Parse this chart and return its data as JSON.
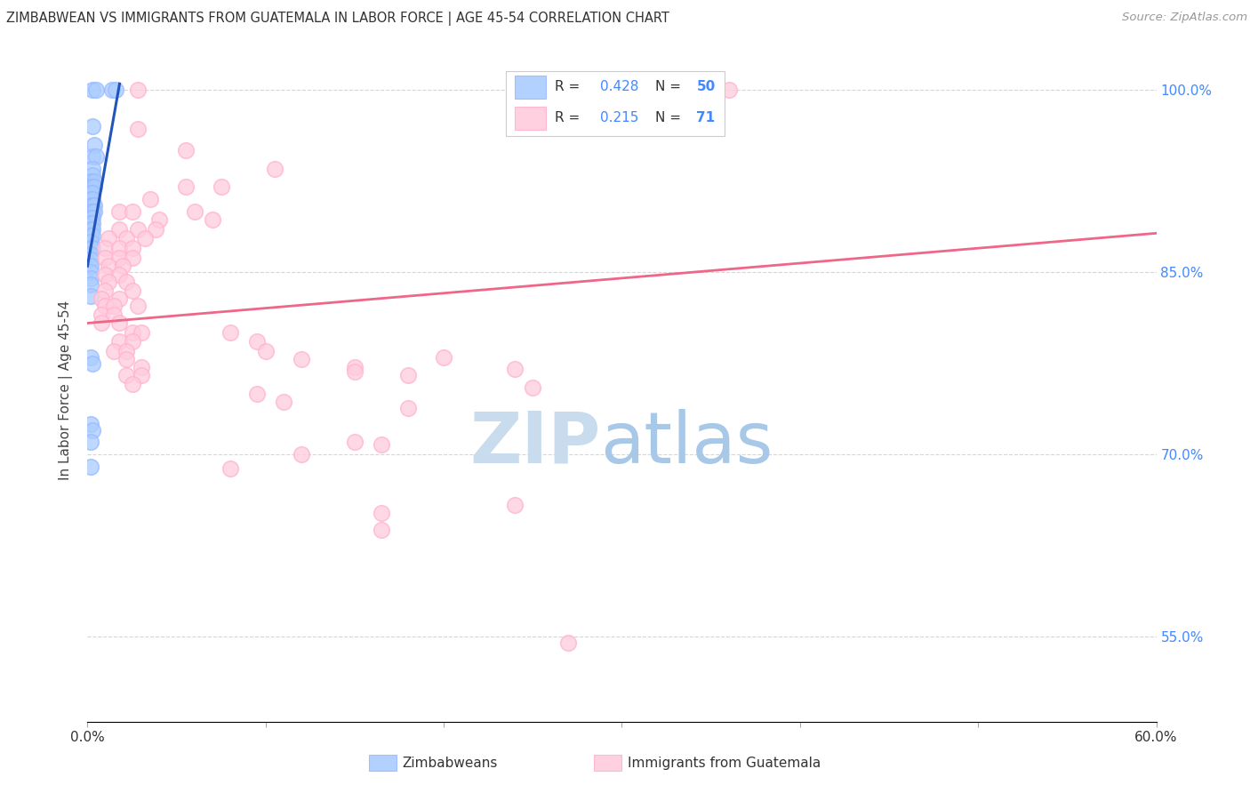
{
  "title": "ZIMBABWEAN VS IMMIGRANTS FROM GUATEMALA IN LABOR FORCE | AGE 45-54 CORRELATION CHART",
  "source": "Source: ZipAtlas.com",
  "ylabel": "In Labor Force | Age 45-54",
  "ytick_labels": [
    "100.0%",
    "85.0%",
    "70.0%",
    "55.0%"
  ],
  "ytick_values": [
    1.0,
    0.85,
    0.7,
    0.55
  ],
  "legend_label1": "Zimbabweans",
  "legend_label2": "Immigrants from Guatemala",
  "R1": 0.428,
  "N1": 50,
  "R2": 0.215,
  "N2": 71,
  "blue_color": "#99BBFF",
  "pink_color": "#FFB3CC",
  "blue_fill": "#AACCFF",
  "pink_fill": "#FFCCDD",
  "blue_line_color": "#2255BB",
  "pink_line_color": "#EE6688",
  "title_color": "#333333",
  "source_color": "#999999",
  "axis_label_color": "#444444",
  "ytick_color": "#4488FF",
  "watermark_zip_color": "#C8DCEE",
  "watermark_atlas_color": "#A8C8E8",
  "blue_scatter": [
    [
      0.003,
      1.0
    ],
    [
      0.005,
      1.0
    ],
    [
      0.014,
      1.0
    ],
    [
      0.016,
      1.0
    ],
    [
      0.003,
      0.97
    ],
    [
      0.004,
      0.955
    ],
    [
      0.003,
      0.945
    ],
    [
      0.005,
      0.945
    ],
    [
      0.003,
      0.935
    ],
    [
      0.003,
      0.93
    ],
    [
      0.002,
      0.925
    ],
    [
      0.004,
      0.925
    ],
    [
      0.002,
      0.92
    ],
    [
      0.003,
      0.92
    ],
    [
      0.004,
      0.92
    ],
    [
      0.002,
      0.915
    ],
    [
      0.003,
      0.915
    ],
    [
      0.002,
      0.91
    ],
    [
      0.003,
      0.91
    ],
    [
      0.002,
      0.905
    ],
    [
      0.003,
      0.905
    ],
    [
      0.004,
      0.905
    ],
    [
      0.002,
      0.9
    ],
    [
      0.003,
      0.9
    ],
    [
      0.004,
      0.9
    ],
    [
      0.002,
      0.895
    ],
    [
      0.003,
      0.895
    ],
    [
      0.002,
      0.89
    ],
    [
      0.003,
      0.89
    ],
    [
      0.002,
      0.885
    ],
    [
      0.003,
      0.885
    ],
    [
      0.002,
      0.88
    ],
    [
      0.003,
      0.88
    ],
    [
      0.002,
      0.875
    ],
    [
      0.002,
      0.87
    ],
    [
      0.003,
      0.87
    ],
    [
      0.002,
      0.865
    ],
    [
      0.002,
      0.86
    ],
    [
      0.002,
      0.855
    ],
    [
      0.002,
      0.85
    ],
    [
      0.002,
      0.845
    ],
    [
      0.002,
      0.84
    ],
    [
      0.002,
      0.83
    ],
    [
      0.002,
      0.78
    ],
    [
      0.003,
      0.775
    ],
    [
      0.002,
      0.725
    ],
    [
      0.003,
      0.72
    ],
    [
      0.002,
      0.71
    ],
    [
      0.002,
      0.69
    ]
  ],
  "pink_scatter": [
    [
      0.028,
      1.0
    ],
    [
      0.36,
      1.0
    ],
    [
      0.028,
      0.968
    ],
    [
      0.055,
      0.95
    ],
    [
      0.105,
      0.935
    ],
    [
      0.055,
      0.92
    ],
    [
      0.075,
      0.92
    ],
    [
      0.035,
      0.91
    ],
    [
      0.018,
      0.9
    ],
    [
      0.025,
      0.9
    ],
    [
      0.06,
      0.9
    ],
    [
      0.04,
      0.893
    ],
    [
      0.07,
      0.893
    ],
    [
      0.018,
      0.885
    ],
    [
      0.028,
      0.885
    ],
    [
      0.038,
      0.885
    ],
    [
      0.012,
      0.878
    ],
    [
      0.022,
      0.878
    ],
    [
      0.032,
      0.878
    ],
    [
      0.01,
      0.87
    ],
    [
      0.018,
      0.87
    ],
    [
      0.025,
      0.87
    ],
    [
      0.01,
      0.862
    ],
    [
      0.018,
      0.862
    ],
    [
      0.025,
      0.862
    ],
    [
      0.012,
      0.855
    ],
    [
      0.02,
      0.855
    ],
    [
      0.01,
      0.848
    ],
    [
      0.018,
      0.848
    ],
    [
      0.012,
      0.842
    ],
    [
      0.022,
      0.842
    ],
    [
      0.01,
      0.835
    ],
    [
      0.025,
      0.835
    ],
    [
      0.008,
      0.828
    ],
    [
      0.018,
      0.828
    ],
    [
      0.01,
      0.822
    ],
    [
      0.015,
      0.822
    ],
    [
      0.028,
      0.822
    ],
    [
      0.008,
      0.815
    ],
    [
      0.015,
      0.815
    ],
    [
      0.008,
      0.808
    ],
    [
      0.018,
      0.808
    ],
    [
      0.025,
      0.8
    ],
    [
      0.03,
      0.8
    ],
    [
      0.018,
      0.793
    ],
    [
      0.025,
      0.793
    ],
    [
      0.015,
      0.785
    ],
    [
      0.022,
      0.785
    ],
    [
      0.022,
      0.778
    ],
    [
      0.03,
      0.772
    ],
    [
      0.022,
      0.765
    ],
    [
      0.03,
      0.765
    ],
    [
      0.025,
      0.758
    ],
    [
      0.08,
      0.8
    ],
    [
      0.095,
      0.793
    ],
    [
      0.1,
      0.785
    ],
    [
      0.12,
      0.778
    ],
    [
      0.15,
      0.772
    ],
    [
      0.18,
      0.765
    ],
    [
      0.2,
      0.78
    ],
    [
      0.24,
      0.77
    ],
    [
      0.095,
      0.75
    ],
    [
      0.11,
      0.743
    ],
    [
      0.15,
      0.768
    ],
    [
      0.18,
      0.738
    ],
    [
      0.25,
      0.755
    ],
    [
      0.15,
      0.71
    ],
    [
      0.165,
      0.708
    ],
    [
      0.12,
      0.7
    ],
    [
      0.08,
      0.688
    ],
    [
      0.165,
      0.652
    ],
    [
      0.165,
      0.638
    ],
    [
      0.24,
      0.658
    ],
    [
      0.27,
      0.545
    ]
  ],
  "xlim": [
    0.0,
    0.6
  ],
  "ylim": [
    0.48,
    1.025
  ],
  "blue_trendline_x": [
    0.0,
    0.018
  ],
  "blue_trendline_y": [
    0.855,
    1.005
  ],
  "pink_trendline_x": [
    0.0,
    0.6
  ],
  "pink_trendline_y": [
    0.808,
    0.882
  ]
}
